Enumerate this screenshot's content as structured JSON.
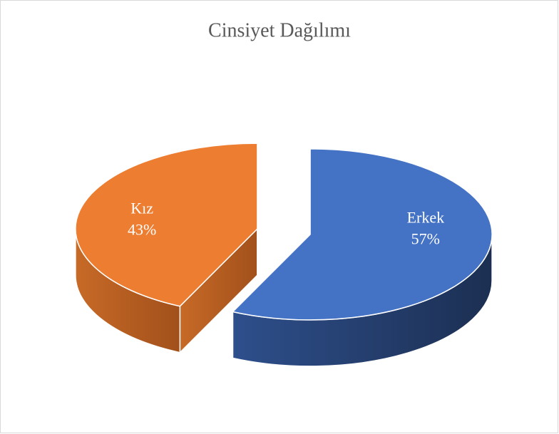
{
  "chart_data": {
    "type": "pie",
    "title": "Cinsiyet Dağılımı",
    "categories": [
      "Erkek",
      "Kız"
    ],
    "values": [
      57,
      43
    ],
    "value_labels": [
      "57%",
      "43%"
    ],
    "colors": [
      "#4472c4",
      "#ed7d31"
    ]
  }
}
